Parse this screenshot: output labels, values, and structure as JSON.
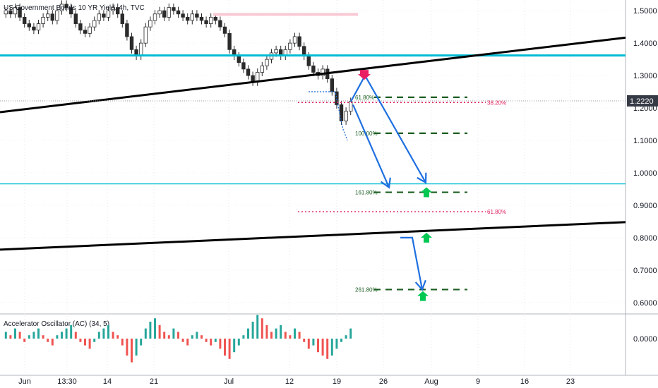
{
  "title": "US Government Bonds 10 YR Yield, 4h, TVC",
  "colors": {
    "up": "#26a69a",
    "down": "#ef5350",
    "candle": "#2b2b2b",
    "trend": "#000000",
    "cyan": "#00bcd4",
    "arrow": "#1e6fe0",
    "fib_green": "#1b5e20",
    "fib_red": "#e0245e",
    "badge": "#363a45"
  },
  "icons": [
    "red-down-arrow-icon",
    "green-up-arrow-icon"
  ],
  "chart_data": [
    {
      "type": "candlestick",
      "title": "US Government Bonds 10 YR Yield, 4h, TVC",
      "last_price": "1.2220",
      "ylim": [
        0.58,
        1.52
      ],
      "y_ticks": [
        "1.5000",
        "1.4000",
        "1.3000",
        "1.2000",
        "1.1000",
        "1.0000",
        "0.9000",
        "0.8000",
        "0.7000",
        "0.6000"
      ],
      "x_ticks": [
        "Jun",
        "13:30",
        "14",
        "21",
        "Jul",
        "12",
        "19",
        "26",
        "Aug",
        "9",
        "16",
        "23"
      ],
      "horizontal_lines": [
        1.362,
        0.966
      ],
      "trendlines": [
        {
          "from": [
            "2021-06-01",
            1.187
          ],
          "to": [
            "2021-08-31",
            1.417
          ]
        },
        {
          "from": [
            "2021-06-01",
            0.763
          ],
          "to": [
            "2021-08-31",
            0.848
          ]
        }
      ],
      "fib_levels": [
        {
          "label": "61.80%",
          "value": 1.233
        },
        {
          "label": "100.00%",
          "value": 1.122
        },
        {
          "label": "161.80%",
          "value": 0.94
        },
        {
          "label": "261.80%",
          "value": 0.64
        }
      ],
      "fib_levels_red": [
        {
          "label": "38.20%",
          "value": 1.217
        },
        {
          "label": "61.80%",
          "value": 0.88
        }
      ],
      "candles_close": [
        1.5,
        1.49,
        1.51,
        1.48,
        1.46,
        1.45,
        1.44,
        1.46,
        1.48,
        1.49,
        1.47,
        1.5,
        1.52,
        1.51,
        1.49,
        1.46,
        1.44,
        1.43,
        1.45,
        1.47,
        1.49,
        1.48,
        1.5,
        1.51,
        1.49,
        1.46,
        1.42,
        1.38,
        1.36,
        1.4,
        1.45,
        1.47,
        1.49,
        1.5,
        1.48,
        1.51,
        1.5,
        1.49,
        1.48,
        1.47,
        1.49,
        1.48,
        1.47,
        1.46,
        1.48,
        1.47,
        1.45,
        1.43,
        1.38,
        1.36,
        1.34,
        1.32,
        1.3,
        1.28,
        1.31,
        1.33,
        1.35,
        1.37,
        1.38,
        1.36,
        1.38,
        1.4,
        1.42,
        1.39,
        1.36,
        1.33,
        1.31,
        1.3,
        1.32,
        1.29,
        1.25,
        1.21,
        1.16,
        1.19,
        1.22
      ]
    },
    {
      "type": "bar",
      "title": "Accelerator Oscillator (AC) (34, 5)",
      "y_ticks": [
        "0.0000"
      ],
      "values": [
        0.02,
        0.01,
        0.03,
        0.02,
        -0.01,
        0.01,
        0.02,
        0.03,
        0.01,
        -0.01,
        -0.02,
        0.01,
        0.02,
        0.03,
        0.04,
        0.02,
        -0.01,
        -0.02,
        -0.03,
        -0.01,
        0.02,
        0.03,
        0.04,
        0.02,
        0.01,
        -0.02,
        -0.05,
        -0.07,
        -0.05,
        -0.02,
        0.03,
        0.05,
        0.06,
        0.04,
        0.02,
        0.01,
        0.03,
        0.02,
        -0.01,
        -0.02,
        0.01,
        0.02,
        0.01,
        -0.01,
        -0.02,
        -0.01,
        -0.03,
        -0.05,
        -0.06,
        -0.04,
        -0.02,
        0.01,
        0.03,
        0.05,
        0.07,
        0.06,
        0.04,
        0.02,
        0.03,
        0.04,
        0.02,
        0.01,
        0.03,
        0.02,
        -0.01,
        -0.03,
        -0.02,
        -0.04,
        -0.05,
        -0.06,
        -0.05,
        -0.03,
        -0.01,
        0.01,
        0.03
      ]
    }
  ]
}
